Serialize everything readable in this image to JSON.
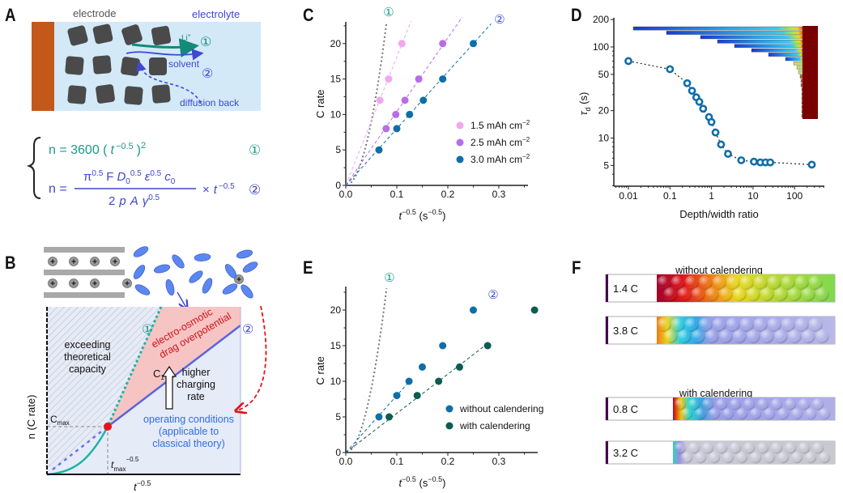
{
  "figure": {
    "panels": {
      "A": {
        "letter": "A",
        "electrode_label": "electrode",
        "electrolyte_label": "electrolyte",
        "li_label": "Li",
        "li_sup": "+",
        "solvent_label": "solvent",
        "diffusion_label": "diffusion back",
        "marker_1": "①",
        "marker_2": "②",
        "colors": {
          "current_collector": "#c4581a",
          "electrolyte": "#d3e9f8",
          "particle": "#4a4a4a",
          "li_arrow": "#138a7a",
          "solvent_arrow": "#3f48d6"
        },
        "eq1": {
          "lhs": "n = 3600 (",
          "t": "t",
          "exp": "−0.5",
          "rhs": ")",
          "pow": "2",
          "marker": "①",
          "color": "#1b9a8a"
        },
        "eq2": {
          "lhs": "n =",
          "num_pi": "π",
          "num_pi_exp": "0.5",
          "num_F": "F",
          "num_D": "D",
          "num_D_sub": "0",
          "num_D_exp": "0.5",
          "num_eps": "ε",
          "num_eps_exp": "0.5",
          "num_c": "c",
          "num_c_sub": "0",
          "den": "2",
          "den_p": "p",
          "den_A": "A",
          "den_gamma": "γ",
          "den_exp": "0.5",
          "times": "×",
          "t": "t",
          "t_exp": "−0.5",
          "marker": "②",
          "color": "#3f48c8"
        }
      },
      "B": {
        "letter": "B",
        "ylabel": "n (C rate)",
        "xlabel": "t",
        "xlabel_exp": "−0.5",
        "region_exceeding": [
          "exceeding",
          "theoretical",
          "capacity"
        ],
        "region_drag": [
          "electro-osmotic",
          "drag overpotential"
        ],
        "c1_label": "C",
        "c1_sub": "1",
        "arrow_label": [
          "higher",
          "charging",
          "rate"
        ],
        "operating": [
          "operating conditions",
          "(applicable to",
          "classical theory)"
        ],
        "cmax": "C",
        "cmax_sub": "max",
        "tmax": "t",
        "tmax_sub": "max",
        "tmax_exp": "−0.5",
        "marker_1": "①",
        "marker_2": "②",
        "colors": {
          "drag_region": "#f7c4c4",
          "operating_region": "#e6ebf8",
          "line2": "#5a63e0",
          "line1": "#1bb5a5",
          "red_dot": "#e5141a",
          "red_arrow": "#e0141a",
          "ion": "#5b87f0"
        }
      },
      "C": {
        "letter": "C",
        "marker_1": "①",
        "marker_2": "②"
      },
      "D": {
        "letter": "D"
      },
      "E": {
        "letter": "E",
        "marker_1": "①",
        "marker_2": "②"
      },
      "F": {
        "letter": "F",
        "title_top": "without calendering",
        "title_bottom": "with calendering",
        "bars": [
          {
            "label": "1.4 C",
            "group": "without calendering"
          },
          {
            "label": "3.8 C",
            "group": "without calendering"
          },
          {
            "label": "0.8 C",
            "group": "with calendering"
          },
          {
            "label": "3.2 C",
            "group": "with calendering"
          }
        ]
      }
    }
  },
  "chart_data": [
    {
      "id": "C",
      "type": "scatter",
      "title": "",
      "xlabel": "t^-0.5 (s^-0.5)",
      "ylabel": "C rate",
      "xlim": [
        0,
        0.37
      ],
      "ylim": [
        0,
        23
      ],
      "xticks": [
        "0.0",
        "0.1",
        "0.2",
        "0.3"
      ],
      "yticks": [
        "0",
        "5",
        "10",
        "15",
        "20"
      ],
      "legend_position": "right-middle",
      "series": [
        {
          "name": "1.5 mAh cm−2",
          "color": "#f0a8ee",
          "x": [
            0.067,
            0.084,
            0.11
          ],
          "y": [
            12,
            15,
            20
          ],
          "fit_slope": 181
        },
        {
          "name": "2.5 mAh cm−2",
          "color": "#b56ee6",
          "x": [
            0.079,
            0.098,
            0.116,
            0.143,
            0.19
          ],
          "y": [
            8,
            10,
            12,
            15,
            20
          ],
          "fit_slope": 104
        },
        {
          "name": "3.0 mAh cm−2",
          "color": "#0e6ea8",
          "x": [
            0.065,
            0.1,
            0.125,
            0.152,
            0.19,
            0.25
          ],
          "y": [
            5,
            8,
            10,
            12,
            15,
            20
          ],
          "fit_slope": 80
        }
      ],
      "reference_curves": [
        {
          "name": "①",
          "formula": "n = 3600 (t^-0.5)^2",
          "style": "dotted",
          "color": "#777777"
        },
        {
          "name": "②",
          "style": "label",
          "color": "#4050d0"
        }
      ]
    },
    {
      "id": "D",
      "type": "scatter",
      "title": "",
      "xlabel": "Depth/width ratio",
      "ylabel": "τd (s)",
      "xscale": "log",
      "yscale": "log",
      "xlim": [
        0.005,
        400
      ],
      "ylim": [
        3,
        200
      ],
      "xticks": [
        "0.01",
        "0.1",
        "1",
        "10",
        "100"
      ],
      "yticks": [
        "5",
        "10",
        "20",
        "50",
        "100",
        "200"
      ],
      "series": [
        {
          "name": "τd",
          "color": "#0e6ea8",
          "x": [
            0.01,
            0.1,
            0.26,
            0.34,
            0.43,
            0.51,
            0.63,
            0.87,
            1.0,
            1.25,
            1.7,
            2.5,
            5.2,
            10.5,
            15,
            20,
            26,
            260
          ],
          "y": [
            70,
            57,
            40,
            33,
            28,
            25,
            21,
            17,
            15,
            11.5,
            8.5,
            6.7,
            5.7,
            5.5,
            5.4,
            5.4,
            5.4,
            5.1
          ]
        }
      ]
    },
    {
      "id": "E",
      "type": "scatter",
      "title": "",
      "xlabel": "t^-0.5 (s^-0.5)",
      "ylabel": "C rate",
      "xlim": [
        0,
        0.38
      ],
      "ylim": [
        0,
        23
      ],
      "xticks": [
        "0.0",
        "0.1",
        "0.2",
        "0.3"
      ],
      "yticks": [
        "0",
        "5",
        "10",
        "15",
        "20"
      ],
      "legend_position": "right-bottom",
      "series": [
        {
          "name": "without calendering",
          "color": "#0e6ea8",
          "x": [
            0.065,
            0.1,
            0.124,
            0.15,
            0.19,
            0.25
          ],
          "y": [
            5,
            8,
            10,
            12,
            15,
            20
          ],
          "fit_slope": 80
        },
        {
          "name": "with calendering",
          "color": "#0c5c50",
          "x": [
            0.085,
            0.14,
            0.182,
            0.223,
            0.278,
            0.37
          ],
          "y": [
            5,
            8,
            10,
            12,
            15,
            20
          ],
          "fit_slope": 55
        }
      ],
      "reference_curves": [
        {
          "name": "①",
          "formula": "n = 3600 (t^-0.5)^2",
          "style": "dotted",
          "color": "#777777"
        },
        {
          "name": "②",
          "style": "label",
          "color": "#4050d0"
        }
      ]
    }
  ]
}
